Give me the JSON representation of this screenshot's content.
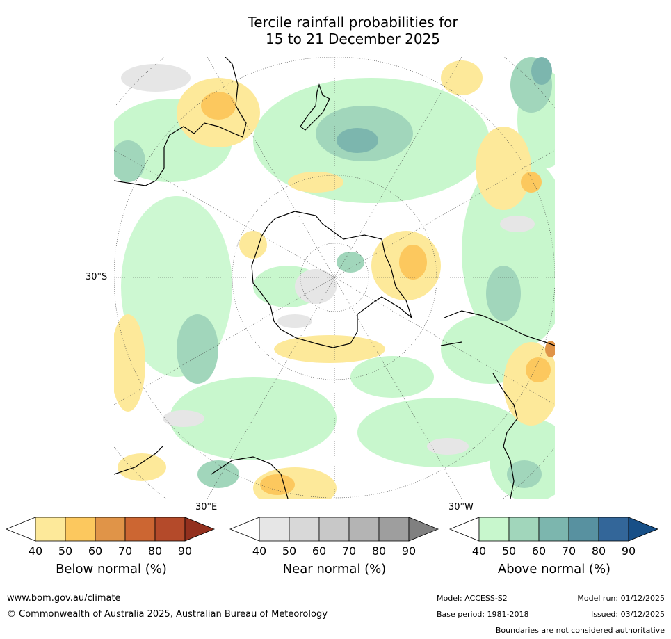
{
  "title_line1": "Tercile rainfall probabilities for",
  "title_line2": "15 to 21 December 2025",
  "map": {
    "projection": "South polar stereographic",
    "lat_label": "30°S",
    "lon_labels": [
      "30°E",
      "30°W"
    ]
  },
  "colorbars": [
    {
      "label": "Below normal (%)",
      "ticks": [
        "40",
        "50",
        "60",
        "70",
        "80",
        "90"
      ],
      "colors": [
        "#ffffff",
        "#fde99a",
        "#fcc85e",
        "#e09448",
        "#cc6632",
        "#b44a2a",
        "#93301e"
      ]
    },
    {
      "label": "Near normal (%)",
      "ticks": [
        "40",
        "50",
        "60",
        "70",
        "80",
        "90"
      ],
      "colors": [
        "#ffffff",
        "#e6e6e6",
        "#d8d8d8",
        "#c8c8c8",
        "#b4b4b4",
        "#9e9e9e",
        "#808080"
      ]
    },
    {
      "label": "Above normal (%)",
      "ticks": [
        "40",
        "50",
        "60",
        "70",
        "80",
        "90"
      ],
      "colors": [
        "#ffffff",
        "#c8f7cd",
        "#a1d6bb",
        "#7cb6ae",
        "#5891a0",
        "#336699",
        "#174f87"
      ]
    }
  ],
  "footer": {
    "website": "www.bom.gov.au/climate",
    "copyright": "© Commonwealth of Australia 2025, Australian Bureau of Meteorology",
    "model": "Model: ACCESS-S2",
    "base_period": "Base period: 1981-2018",
    "model_run": "Model run: 01/12/2025",
    "issued": "Issued: 03/12/2025",
    "boundaries": "Boundaries are not considered authoritative"
  }
}
